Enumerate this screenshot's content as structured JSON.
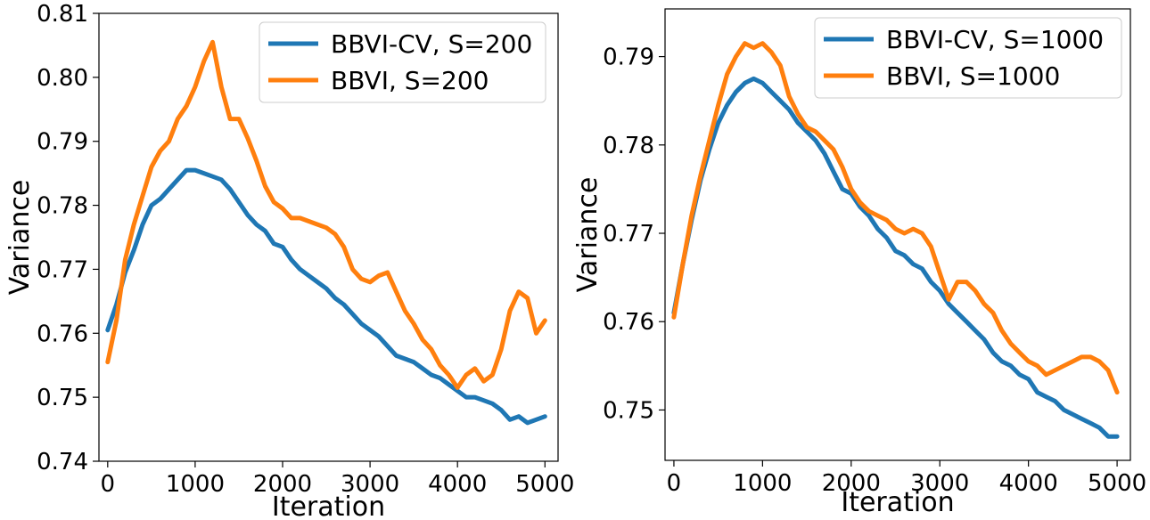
{
  "colors": {
    "cv": "#1f77b4",
    "plain": "#ff7f0e",
    "axis": "#000000",
    "legend_border": "#cccccc"
  },
  "chart_data": [
    {
      "type": "line",
      "title": "",
      "xlabel": "Iteration",
      "ylabel": "Variance",
      "xlim": [
        -100,
        5150
      ],
      "ylim": [
        0.74,
        0.81
      ],
      "xticks": [
        0,
        1000,
        2000,
        3000,
        4000,
        5000
      ],
      "xtick_labels": [
        "0",
        "1000",
        "2000",
        "3000",
        "4000",
        "5000"
      ],
      "yticks": [
        0.74,
        0.75,
        0.76,
        0.77,
        0.78,
        0.79,
        0.8,
        0.81
      ],
      "ytick_labels": [
        "0.74",
        "0.75",
        "0.76",
        "0.77",
        "0.78",
        "0.79",
        "0.80",
        "0.81"
      ],
      "grid": false,
      "legend_placement": "top-right",
      "series": [
        {
          "name": "BBVI-CV, S=200",
          "color_key": "cv",
          "x": [
            0,
            100,
            200,
            300,
            400,
            500,
            600,
            700,
            800,
            900,
            1000,
            1100,
            1200,
            1300,
            1400,
            1500,
            1600,
            1700,
            1800,
            1900,
            2000,
            2100,
            2200,
            2300,
            2400,
            2500,
            2600,
            2700,
            2800,
            2900,
            3000,
            3100,
            3200,
            3300,
            3400,
            3500,
            3600,
            3700,
            3800,
            3900,
            4000,
            4100,
            4200,
            4300,
            4400,
            4500,
            4600,
            4700,
            4800,
            4900,
            5000
          ],
          "y": [
            0.7605,
            0.7645,
            0.7695,
            0.773,
            0.777,
            0.78,
            0.781,
            0.7825,
            0.784,
            0.7855,
            0.7855,
            0.785,
            0.7845,
            0.784,
            0.7825,
            0.7805,
            0.7785,
            0.777,
            0.776,
            0.774,
            0.7735,
            0.7715,
            0.77,
            0.769,
            0.768,
            0.767,
            0.7655,
            0.7645,
            0.763,
            0.7615,
            0.7605,
            0.7595,
            0.758,
            0.7565,
            0.756,
            0.7555,
            0.7545,
            0.7535,
            0.753,
            0.752,
            0.751,
            0.75,
            0.75,
            0.7495,
            0.749,
            0.748,
            0.7465,
            0.747,
            0.746,
            0.7465,
            0.747
          ]
        },
        {
          "name": "BBVI, S=200",
          "color_key": "plain",
          "x": [
            0,
            100,
            200,
            300,
            400,
            500,
            600,
            700,
            800,
            900,
            1000,
            1100,
            1200,
            1300,
            1400,
            1500,
            1600,
            1700,
            1800,
            1900,
            2000,
            2100,
            2200,
            2300,
            2400,
            2500,
            2600,
            2700,
            2800,
            2900,
            3000,
            3100,
            3200,
            3300,
            3400,
            3500,
            3600,
            3700,
            3800,
            3900,
            4000,
            4100,
            4200,
            4300,
            4400,
            4500,
            4600,
            4700,
            4800,
            4900,
            5000
          ],
          "y": [
            0.7555,
            0.762,
            0.7715,
            0.777,
            0.7815,
            0.786,
            0.7885,
            0.79,
            0.7935,
            0.7955,
            0.7985,
            0.8025,
            0.8055,
            0.7985,
            0.7935,
            0.7935,
            0.7905,
            0.787,
            0.783,
            0.7805,
            0.7795,
            0.778,
            0.778,
            0.7775,
            0.777,
            0.7765,
            0.7755,
            0.7735,
            0.77,
            0.7685,
            0.768,
            0.769,
            0.7695,
            0.7665,
            0.7635,
            0.7615,
            0.759,
            0.7575,
            0.755,
            0.7535,
            0.7515,
            0.7535,
            0.7545,
            0.7525,
            0.7535,
            0.7575,
            0.7635,
            0.7665,
            0.7655,
            0.76,
            0.762
          ]
        }
      ]
    },
    {
      "type": "line",
      "title": "",
      "xlabel": "Iteration",
      "ylabel": "Variance",
      "xlim": [
        -100,
        5150
      ],
      "ylim": [
        0.7443,
        0.7954
      ],
      "xticks": [
        0,
        1000,
        2000,
        3000,
        4000,
        5000
      ],
      "xtick_labels": [
        "0",
        "1000",
        "2000",
        "3000",
        "4000",
        "5000"
      ],
      "yticks": [
        0.75,
        0.76,
        0.77,
        0.78,
        0.79
      ],
      "ytick_labels": [
        "0.75",
        "0.76",
        "0.77",
        "0.78",
        "0.79"
      ],
      "grid": false,
      "legend_placement": "top-right",
      "series": [
        {
          "name": "BBVI-CV, S=1000",
          "color_key": "cv",
          "x": [
            0,
            100,
            200,
            300,
            400,
            500,
            600,
            700,
            800,
            900,
            1000,
            1100,
            1200,
            1300,
            1400,
            1500,
            1600,
            1700,
            1800,
            1900,
            2000,
            2100,
            2200,
            2300,
            2400,
            2500,
            2600,
            2700,
            2800,
            2900,
            3000,
            3100,
            3200,
            3300,
            3400,
            3500,
            3600,
            3700,
            3800,
            3900,
            4000,
            4100,
            4200,
            4300,
            4400,
            4500,
            4600,
            4700,
            4800,
            4900,
            5000
          ],
          "y": [
            0.761,
            0.7665,
            0.7715,
            0.776,
            0.7795,
            0.7825,
            0.7845,
            0.786,
            0.787,
            0.7875,
            0.787,
            0.786,
            0.785,
            0.784,
            0.7825,
            0.7815,
            0.7805,
            0.779,
            0.777,
            0.775,
            0.7745,
            0.773,
            0.772,
            0.7705,
            0.7695,
            0.768,
            0.7675,
            0.7665,
            0.766,
            0.7645,
            0.7635,
            0.762,
            0.761,
            0.76,
            0.759,
            0.758,
            0.7565,
            0.7555,
            0.755,
            0.754,
            0.7535,
            0.752,
            0.7515,
            0.751,
            0.75,
            0.7495,
            0.749,
            0.7485,
            0.748,
            0.747,
            0.747
          ]
        },
        {
          "name": "BBVI, S=1000",
          "color_key": "plain",
          "x": [
            0,
            100,
            200,
            300,
            400,
            500,
            600,
            700,
            800,
            900,
            1000,
            1100,
            1200,
            1300,
            1400,
            1500,
            1600,
            1700,
            1800,
            1900,
            2000,
            2100,
            2200,
            2300,
            2400,
            2500,
            2600,
            2700,
            2800,
            2900,
            3000,
            3100,
            3200,
            3300,
            3400,
            3500,
            3600,
            3700,
            3800,
            3900,
            4000,
            4100,
            4200,
            4300,
            4400,
            4500,
            4600,
            4700,
            4800,
            4900,
            5000
          ],
          "y": [
            0.7605,
            0.7665,
            0.772,
            0.7765,
            0.7805,
            0.7845,
            0.788,
            0.79,
            0.7915,
            0.791,
            0.7915,
            0.7905,
            0.789,
            0.7855,
            0.7835,
            0.782,
            0.7815,
            0.7805,
            0.7795,
            0.7775,
            0.775,
            0.7735,
            0.7725,
            0.772,
            0.7715,
            0.7705,
            0.77,
            0.7705,
            0.77,
            0.7685,
            0.7655,
            0.7625,
            0.7645,
            0.7645,
            0.7635,
            0.762,
            0.761,
            0.759,
            0.7575,
            0.7565,
            0.7555,
            0.755,
            0.754,
            0.7545,
            0.755,
            0.7555,
            0.756,
            0.756,
            0.7555,
            0.7545,
            0.752
          ]
        }
      ]
    }
  ]
}
